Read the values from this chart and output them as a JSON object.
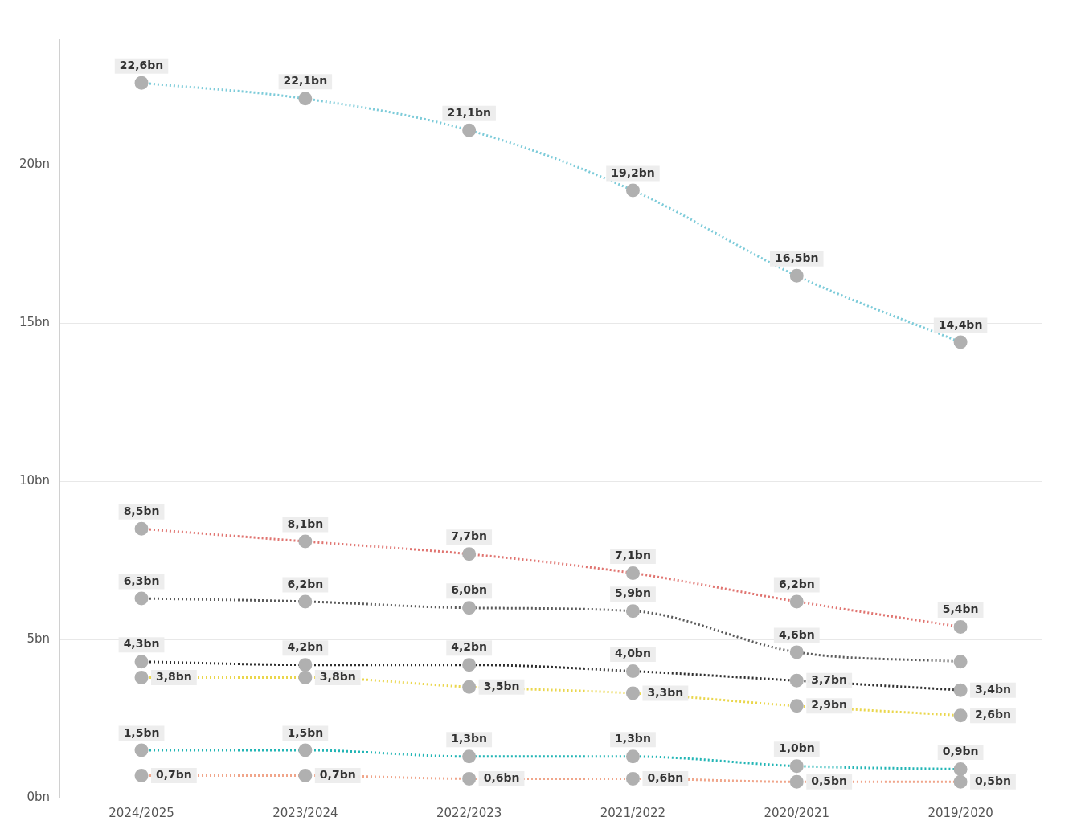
{
  "chart_data": {
    "type": "line",
    "categories": [
      "2024/2025",
      "2023/2024",
      "2022/2023",
      "2021/2022",
      "2020/2021",
      "2019/2020"
    ],
    "ylim": [
      0,
      24
    ],
    "yticks": [
      {
        "value": 0,
        "label": "0bn"
      },
      {
        "value": 5,
        "label": "5bn"
      },
      {
        "value": 10,
        "label": "10bn"
      },
      {
        "value": 15,
        "label": "15bn"
      },
      {
        "value": 20,
        "label": "20bn"
      }
    ],
    "grid": "y",
    "legend": false,
    "marker": "circle",
    "line_style": "dotted",
    "series": [
      {
        "color": "#7ccbd9",
        "values": [
          22.6,
          22.1,
          21.1,
          19.2,
          16.5,
          14.4
        ],
        "value_labels": [
          "22,6bn",
          "22,1bn",
          "21,1bn",
          "19,2bn",
          "16,5bn",
          "14,4bn"
        ]
      },
      {
        "color": "#e07470",
        "values": [
          8.5,
          8.1,
          7.7,
          7.1,
          6.2,
          5.4
        ],
        "value_labels": [
          "8,5bn",
          "8,1bn",
          "7,7bn",
          "7,1bn",
          "6,2bn",
          "5,4bn"
        ]
      },
      {
        "color": "#5a5a5a",
        "values": [
          6.3,
          6.2,
          6.0,
          5.9,
          4.6,
          4.3
        ],
        "value_labels": [
          "6,3bn",
          "6,2bn",
          "6,0bn",
          "5,9bn",
          "4,6bn",
          null
        ]
      },
      {
        "color": "#2e2e2e",
        "values": [
          4.3,
          4.2,
          4.2,
          4.0,
          3.7,
          3.4
        ],
        "value_labels": [
          "4,3bn",
          "4,2bn",
          "4,2bn",
          "4,0bn",
          "3,7bn",
          "3,4bn"
        ]
      },
      {
        "color": "#ead64c",
        "values": [
          3.8,
          3.8,
          3.5,
          3.3,
          2.9,
          2.6
        ],
        "value_labels": [
          "3,8bn",
          "3,8bn",
          "3,5bn",
          "3,3bn",
          "2,9bn",
          "2,6bn"
        ]
      },
      {
        "color": "#22b5b5",
        "values": [
          1.5,
          1.5,
          1.3,
          1.3,
          1.0,
          0.9
        ],
        "value_labels": [
          "1,5bn",
          "1,5bn",
          "1,3bn",
          "1,3bn",
          "1,0bn",
          "0,9bn"
        ]
      },
      {
        "color": "#f0a58a",
        "values": [
          0.7,
          0.7,
          0.6,
          0.6,
          0.5,
          0.5
        ],
        "value_labels": [
          "0,7bn",
          "0,7bn",
          "0,6bn",
          "0,6bn",
          "0,5bn",
          "0,5bn"
        ]
      }
    ]
  }
}
